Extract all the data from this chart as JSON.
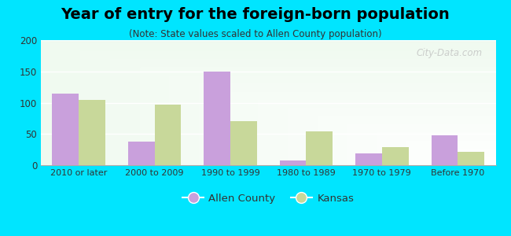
{
  "title": "Year of entry for the foreign-born population",
  "subtitle": "(Note: State values scaled to Allen County population)",
  "categories": [
    "2010 or later",
    "2000 to 2009",
    "1990 to 1999",
    "1980 to 1989",
    "1970 to 1979",
    "Before 1970"
  ],
  "allen_county": [
    114,
    38,
    150,
    7,
    19,
    48
  ],
  "kansas": [
    104,
    97,
    70,
    54,
    29,
    22
  ],
  "allen_color": "#c9a0dc",
  "kansas_color": "#c8d89a",
  "background_outer": "#00e5ff",
  "ylim": [
    0,
    200
  ],
  "yticks": [
    0,
    50,
    100,
    150,
    200
  ],
  "bar_width": 0.35,
  "legend_labels": [
    "Allen County",
    "Kansas"
  ],
  "watermark": "City-Data.com",
  "title_fontsize": 14,
  "subtitle_fontsize": 8.5
}
